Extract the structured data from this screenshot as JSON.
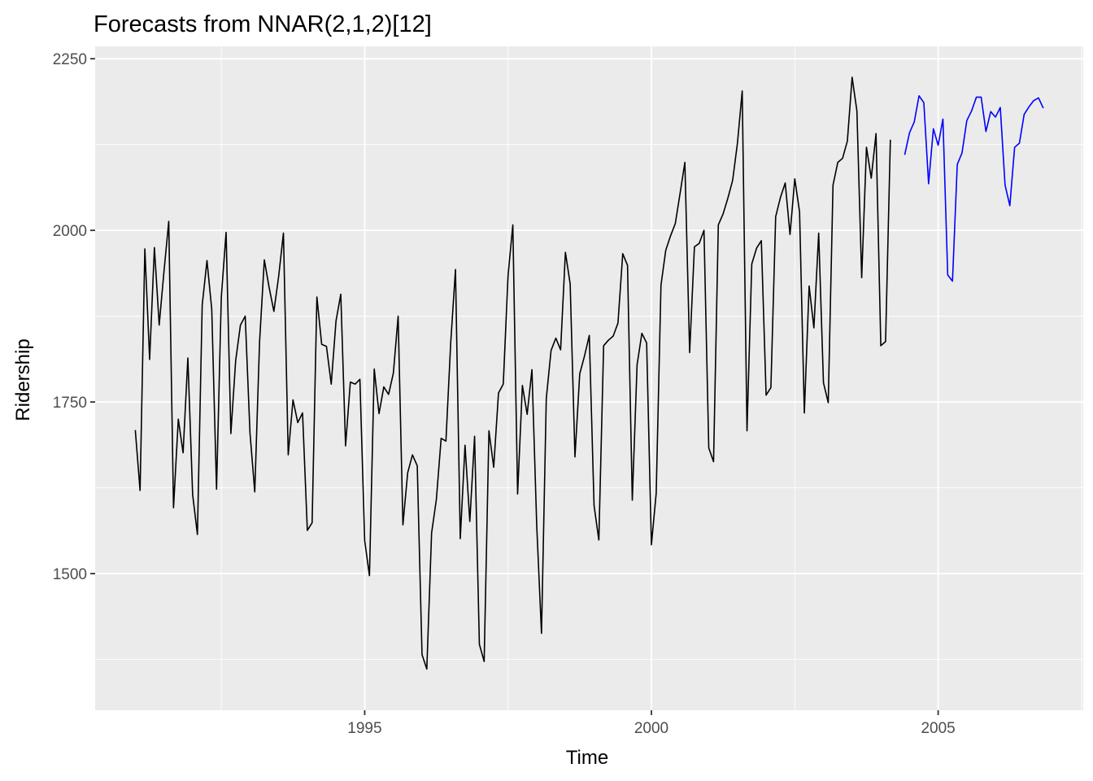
{
  "chart_data": {
    "type": "line",
    "title": "Forecasts from NNAR(2,1,2)[12]",
    "xlabel": "Time",
    "ylabel": "Ridership",
    "xlim": [
      1990.3,
      2007.53
    ],
    "ylim": [
      1301,
      2268
    ],
    "x_ticks": [
      1995,
      2000,
      2005
    ],
    "x_tick_labels": [
      "1995",
      "2000",
      "2005"
    ],
    "y_ticks": [
      1500,
      1750,
      2000,
      2250
    ],
    "y_tick_labels": [
      "1500",
      "1750",
      "2000",
      "2250"
    ],
    "grid": true,
    "legend": "none",
    "series": [
      {
        "role": "observed",
        "color": "#000000",
        "x_start": 1991.0,
        "frequency": 12,
        "values": [
          1709,
          1621,
          1973,
          1812,
          1975,
          1862,
          1940,
          2013,
          1596,
          1725,
          1676,
          1814,
          1615,
          1557,
          1891,
          1956,
          1885,
          1623,
          1903,
          1997,
          1704,
          1810,
          1862,
          1875,
          1705,
          1619,
          1837,
          1957,
          1917,
          1882,
          1933,
          1996,
          1673,
          1753,
          1720,
          1734,
          1563,
          1574,
          1903,
          1834,
          1831,
          1776,
          1868,
          1907,
          1686,
          1779,
          1776,
          1783,
          1548,
          1497,
          1798,
          1733,
          1772,
          1761,
          1792,
          1875,
          1571,
          1647,
          1673,
          1657,
          1382,
          1361,
          1559,
          1608,
          1697,
          1693,
          1836,
          1943,
          1551,
          1687,
          1576,
          1700,
          1397,
          1372,
          1708,
          1655,
          1763,
          1776,
          1934,
          2008,
          1616,
          1774,
          1732,
          1797,
          1570,
          1413,
          1755,
          1825,
          1843,
          1826,
          1968,
          1922,
          1670,
          1791,
          1817,
          1847,
          1599,
          1549,
          1832,
          1840,
          1846,
          1865,
          1966,
          1949,
          1607,
          1804,
          1850,
          1836,
          1542,
          1617,
          1920,
          1971,
          1992,
          2010,
          2054,
          2099,
          1822,
          1976,
          1981,
          2000,
          1683,
          1663,
          2008,
          2024,
          2047,
          2073,
          2127,
          2203,
          1708,
          1951,
          1974,
          1985,
          1760,
          1771,
          2020,
          2048,
          2069,
          1994,
          2075,
          2027,
          1734,
          1919,
          1858,
          1996,
          1778,
          1749,
          2066,
          2099,
          2105,
          2130,
          2223,
          2174,
          1931,
          2121,
          2076,
          2141,
          1832,
          1838,
          2132
        ]
      },
      {
        "role": "forecast",
        "color": "#0000ff",
        "x_start": 2004.4167,
        "frequency": 12,
        "values": [
          2110,
          2142,
          2158,
          2196,
          2186,
          2068,
          2148,
          2124,
          2162,
          1935,
          1926,
          2096,
          2113,
          2160,
          2174,
          2194,
          2194,
          2144,
          2173,
          2165,
          2179,
          2066,
          2036,
          2121,
          2127,
          2169,
          2180,
          2189,
          2193,
          2178
        ]
      }
    ]
  }
}
